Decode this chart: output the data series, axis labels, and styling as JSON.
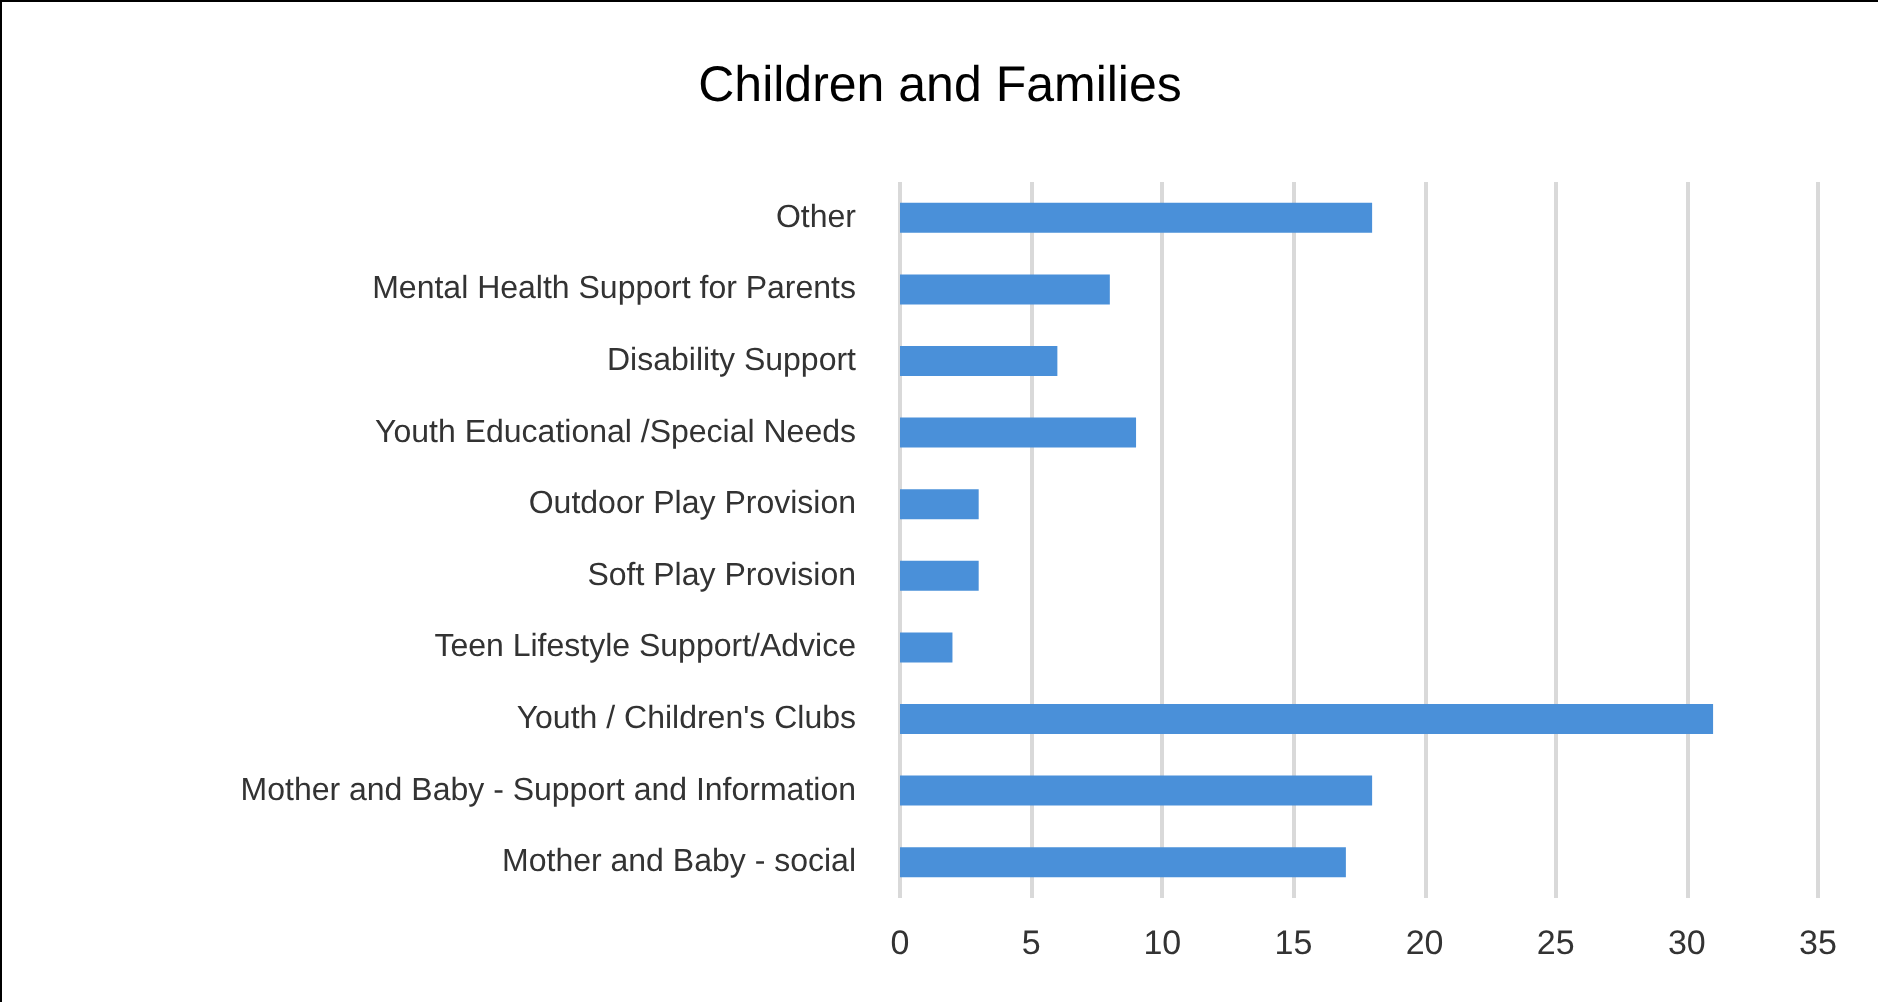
{
  "chart_data": {
    "type": "bar",
    "orientation": "horizontal",
    "title": "Children and Families",
    "categories": [
      "Other",
      "Mental Health Support for Parents",
      "Disability Support",
      "Youth Educational /Special Needs",
      "Outdoor Play Provision",
      "Soft Play Provision",
      "Teen Lifestyle Support/Advice",
      "Youth / Children's Clubs",
      "Mother and Baby - Support and Information",
      "Mother and Baby - social"
    ],
    "values": [
      18,
      8,
      6,
      9,
      3,
      3,
      2,
      31,
      18,
      17
    ],
    "color": "#4a90d9",
    "xlim": [
      0,
      35
    ],
    "xticks": [
      0,
      5,
      10,
      15,
      20,
      25,
      30,
      35
    ],
    "grid": "x"
  }
}
